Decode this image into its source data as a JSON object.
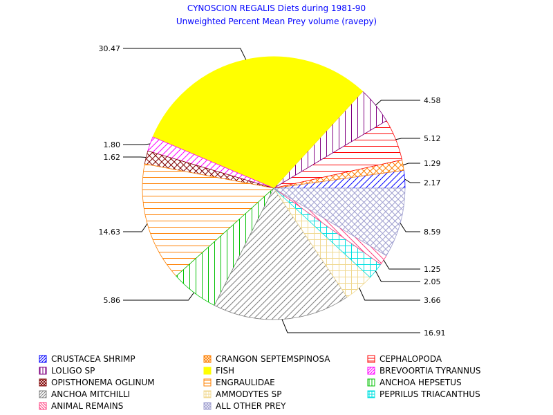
{
  "chart_data": {
    "type": "pie",
    "title": "CYNOSCION REGALIS Diets during 1981-90",
    "subtitle": "Unweighted Percent Mean Prey volume (ravepy)",
    "slices": [
      {
        "name": "CRUSTACEA SHRIMP",
        "value": 2.17,
        "label": "2.17",
        "color": "#0000ff",
        "pattern": "diag-up"
      },
      {
        "name": "CRANGON SEPTEMSPINOSA",
        "value": 1.29,
        "label": "1.29",
        "color": "#ff8000",
        "pattern": "cross-diag"
      },
      {
        "name": "CEPHALOPODA",
        "value": 5.12,
        "label": "5.12",
        "color": "#ff0000",
        "pattern": "horiz"
      },
      {
        "name": "LOLIGO SP",
        "value": 4.58,
        "label": "4.58",
        "color": "#800080",
        "pattern": "vert"
      },
      {
        "name": "FISH",
        "value": 30.47,
        "label": "30.47",
        "color": "#ffff00",
        "pattern": "solid"
      },
      {
        "name": "BREVOORTIA TYRANNUS",
        "value": 1.8,
        "label": "1.80",
        "color": "#ff00ff",
        "pattern": "diag-up"
      },
      {
        "name": "OPISTHONEMA OGLINUM",
        "value": 1.62,
        "label": "1.62",
        "color": "#800000",
        "pattern": "cross-diag"
      },
      {
        "name": "ENGRAULIDAE",
        "value": 14.63,
        "label": "14.63",
        "color": "#ff8000",
        "pattern": "horiz"
      },
      {
        "name": "ANCHOA HEPSETUS",
        "value": 5.86,
        "label": "5.86",
        "color": "#00c000",
        "pattern": "vert"
      },
      {
        "name": "ANCHOA MITCHILLI",
        "value": 16.91,
        "label": "16.91",
        "color": "#808080",
        "pattern": "diag-up"
      },
      {
        "name": "AMMODYTES SP",
        "value": 3.66,
        "label": "3.66",
        "color": "#f0d890",
        "pattern": "cross"
      },
      {
        "name": "PEPRILUS TRIACANTHUS",
        "value": 2.05,
        "label": "2.05",
        "color": "#00e0e0",
        "pattern": "cross"
      },
      {
        "name": "ANIMAL REMAINS",
        "value": 1.25,
        "label": "1.25",
        "color": "#ff4080",
        "pattern": "diag-down"
      },
      {
        "name": "ALL OTHER PREY",
        "value": 8.59,
        "label": "8.59",
        "color": "#a0a0d0",
        "pattern": "cross-diag"
      }
    ],
    "legend": {
      "placement": "bottom",
      "order": [
        "CRUSTACEA SHRIMP",
        "CRANGON SEPTEMSPINOSA",
        "CEPHALOPODA",
        "LOLIGO SP",
        "FISH",
        "BREVOORTIA TYRANNUS",
        "OPISTHONEMA OGLINUM",
        "ENGRAULIDAE",
        "ANCHOA HEPSETUS",
        "ANCHOA MITCHILLI",
        "AMMODYTES SP",
        "PEPRILUS TRIACANTHUS",
        "ANIMAL REMAINS",
        "ALL OTHER PREY"
      ]
    }
  }
}
